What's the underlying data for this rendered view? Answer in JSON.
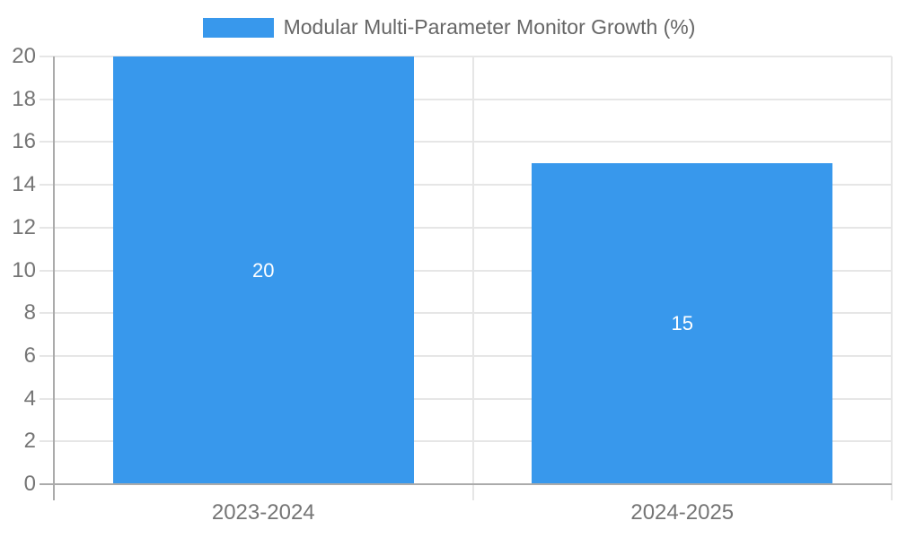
{
  "chart_data": {
    "type": "bar",
    "title": "Modular Multi-Parameter Monitor Growth (%)",
    "categories": [
      "2023-2024",
      "2024-2025"
    ],
    "values": [
      20,
      15
    ],
    "bar_value_labels": [
      "20",
      "15"
    ],
    "xlabel": "",
    "ylabel": "",
    "ylim": [
      0,
      20
    ],
    "yticks": [
      0,
      2,
      4,
      6,
      8,
      10,
      12,
      14,
      16,
      18,
      20
    ],
    "grid": true,
    "legend_position": "top-center",
    "colors": {
      "bar": "#3898ec",
      "bar_value_text": "#ffffff",
      "axis_text": "#757575",
      "legend_text": "#666666",
      "gridline": "#e6e6e6",
      "axis_line": "#ababab"
    }
  }
}
